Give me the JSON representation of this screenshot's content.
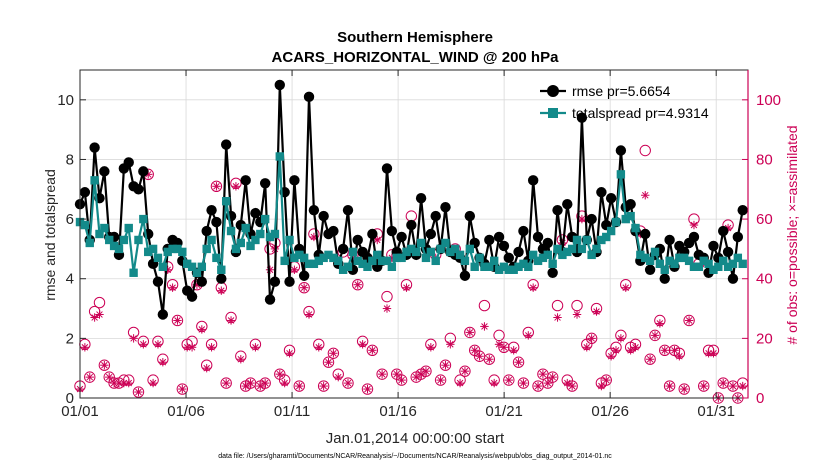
{
  "chart_data": {
    "type": "line",
    "title": "Southern Hemisphere",
    "subtitle": "ACARS_HORIZONTAL_WIND @ 200 hPa",
    "xlabel": "Jan.01,2014 00:00:00 start",
    "ylabel": "rmse and totalspread",
    "ylabel_right": "# of obs: o=possible; ×=assimilated",
    "footnote": "data file: /Users/gharamti/Documents/NCAR/Reanalysis/~/Documents/NCAR/Reanalysis/webpub/obs_diag_output_2014-01.nc",
    "xlim": [
      1,
      32.5
    ],
    "ylim": [
      0,
      11
    ],
    "ylim_right": [
      0,
      110
    ],
    "grid": true,
    "legend_position": "top-right",
    "x_ticks": [
      1,
      6,
      11,
      16,
      21,
      26,
      31
    ],
    "x_tick_labels": [
      "01/01",
      "01/06",
      "01/11",
      "01/16",
      "01/21",
      "01/26",
      "01/31"
    ],
    "y_ticks": [
      0,
      2,
      4,
      6,
      8,
      10
    ],
    "y_tick_labels": [
      "0",
      "2",
      "4",
      "6",
      "8",
      "10"
    ],
    "y_right_ticks": [
      0,
      20,
      40,
      60,
      80,
      100
    ],
    "y_right_tick_labels": [
      "0",
      "20",
      "40",
      "60",
      "80",
      "100"
    ],
    "colors": {
      "rmse": "#000000",
      "totalspread": "#138a8a",
      "obs": "#cc0055",
      "grid": "#d9d9d9"
    },
    "series": [
      {
        "name": "rmse pr=5.6654",
        "axis": "left",
        "marker": "filled-circle",
        "values": [
          6.5,
          6.9,
          5.3,
          8.4,
          6.7,
          7.6,
          5.4,
          5.4,
          4.8,
          7.7,
          7.9,
          7.1,
          7.0,
          7.6,
          5.5,
          4.5,
          3.9,
          2.8,
          5.0,
          5.3,
          5.2,
          4.6,
          3.6,
          3.4,
          4.2,
          3.9,
          5.6,
          6.3,
          5.9,
          4.0,
          8.5,
          6.1,
          4.9,
          5.8,
          7.3,
          5.5,
          6.2,
          5.9,
          7.2,
          3.3,
          3.9,
          10.5,
          6.9,
          3.9,
          7.3,
          5.0,
          4.1,
          10.1,
          6.3,
          4.8,
          6.1,
          5.5,
          5.6,
          4.5,
          5.0,
          6.3,
          4.3,
          5.3,
          4.9,
          4.7,
          5.5,
          4.4,
          4.6,
          7.7,
          5.6,
          4.9,
          5.4,
          4.8,
          5.8,
          4.8,
          6.7,
          5.0,
          5.5,
          6.1,
          5.0,
          6.4,
          4.9,
          4.8,
          4.7,
          4.1,
          6.1,
          5.2,
          4.7,
          4.5,
          5.3,
          4.4,
          5.4,
          5.1,
          4.7,
          4.4,
          4.9,
          5.6,
          4.6,
          7.3,
          5.4,
          5.0,
          5.2,
          4.2,
          6.3,
          4.9,
          6.5,
          5.4,
          4.9,
          9.4,
          5.3,
          6.0,
          4.9,
          6.9,
          5.8,
          6.7,
          5.9,
          8.3,
          6.4,
          6.5,
          5.6,
          4.6,
          5.5,
          4.3,
          4.8,
          5.0,
          4.0,
          5.3,
          4.4,
          5.1,
          4.9,
          5.2,
          5.4,
          4.8,
          4.7,
          4.2,
          5.1,
          4.7,
          5.6,
          4.9,
          4.0,
          5.4,
          6.3
        ]
      },
      {
        "name": "totalspread pr=4.9314",
        "axis": "left",
        "marker": "filled-square",
        "values": [
          5.9,
          5.8,
          5.2,
          7.3,
          5.5,
          5.7,
          5.3,
          5.1,
          5.0,
          5.3,
          5.7,
          4.2,
          5.3,
          6.0,
          4.9,
          5.0,
          4.7,
          4.4,
          4.9,
          5.0,
          5.0,
          4.9,
          4.5,
          4.4,
          4.2,
          4.4,
          5.0,
          5.3,
          4.7,
          4.3,
          6.6,
          5.6,
          5.0,
          5.2,
          5.7,
          5.1,
          5.3,
          5.5,
          6.0,
          5.4,
          5.5,
          8.1,
          4.6,
          5.3,
          4.7,
          4.8,
          4.7,
          4.5,
          4.5,
          4.6,
          4.7,
          4.8,
          4.7,
          4.6,
          4.3,
          4.4,
          4.9,
          4.6,
          4.5,
          4.4,
          4.6,
          4.8,
          4.6,
          4.6,
          4.4,
          4.7,
          4.7,
          4.9,
          5.0,
          4.9,
          5.2,
          4.7,
          4.9,
          4.6,
          5.0,
          5.2,
          4.9,
          5.0,
          4.8,
          4.6,
          5.0,
          4.4,
          4.7,
          4.4,
          4.4,
          4.6,
          4.3,
          4.4,
          4.3,
          4.3,
          4.4,
          4.5,
          4.4,
          4.8,
          4.6,
          4.7,
          4.8,
          4.5,
          5.0,
          4.8,
          4.9,
          5.0,
          5.3,
          5.0,
          5.3,
          4.8,
          5.0,
          5.3,
          5.4,
          5.6,
          5.9,
          7.5,
          6.0,
          6.1,
          5.7,
          4.8,
          4.7,
          4.6,
          4.9,
          4.5,
          4.3,
          4.6,
          4.5,
          4.7,
          4.7,
          4.6,
          4.4,
          4.4,
          4.6,
          4.5,
          4.3,
          4.4,
          4.6,
          4.4,
          4.5,
          4.7,
          4.5
        ]
      },
      {
        "name": "possible",
        "axis": "right",
        "marker": "open-circle",
        "values": [
          4,
          18,
          7,
          29,
          32,
          11,
          7,
          5,
          5,
          6,
          6,
          22,
          2,
          19,
          75,
          6,
          19,
          13,
          44,
          38,
          26,
          3,
          18,
          19,
          38,
          24,
          11,
          18,
          71,
          37,
          5,
          27,
          72,
          14,
          4,
          5,
          18,
          4,
          5,
          50,
          52,
          8,
          6,
          16,
          44,
          4,
          37,
          29,
          55,
          18,
          4,
          12,
          15,
          8,
          49,
          5,
          48,
          38,
          19,
          3,
          16,
          55,
          8,
          34,
          48,
          8,
          6,
          38,
          61,
          7,
          8,
          9,
          18,
          48,
          6,
          11,
          20,
          50,
          6,
          9,
          22,
          16,
          14,
          31,
          13,
          6,
          21,
          17,
          6,
          17,
          12,
          5,
          22,
          38,
          4,
          8,
          5,
          7,
          31,
          53,
          6,
          4,
          31,
          61,
          18,
          20,
          30,
          5,
          6,
          15,
          17,
          21,
          38,
          17,
          18,
          56,
          83,
          13,
          21,
          26,
          16,
          4,
          16,
          15,
          3,
          26,
          60,
          45,
          4,
          16,
          16,
          0,
          5,
          58,
          4,
          0,
          5
        ]
      },
      {
        "name": "assimilated",
        "axis": "right",
        "marker": "asterisk",
        "values": [
          3,
          17,
          7,
          27,
          28,
          11,
          7,
          5,
          5,
          5,
          5,
          20,
          2,
          18,
          75,
          5,
          18,
          12,
          43,
          37,
          26,
          3,
          17,
          17,
          38,
          23,
          10,
          17,
          71,
          36,
          5,
          26,
          71,
          13,
          4,
          5,
          17,
          4,
          5,
          43,
          50,
          8,
          5,
          15,
          43,
          4,
          37,
          28,
          54,
          17,
          4,
          12,
          15,
          7,
          50,
          5,
          47,
          38,
          18,
          3,
          16,
          53,
          8,
          30,
          47,
          8,
          6,
          37,
          58,
          7,
          8,
          9,
          17,
          47,
          6,
          11,
          18,
          48,
          5,
          9,
          22,
          16,
          14,
          24,
          13,
          5,
          18,
          17,
          6,
          16,
          12,
          5,
          21,
          37,
          4,
          8,
          5,
          7,
          27,
          52,
          5,
          4,
          28,
          60,
          17,
          20,
          29,
          4,
          6,
          14,
          16,
          20,
          37,
          16,
          17,
          55,
          68,
          13,
          21,
          25,
          16,
          4,
          16,
          14,
          3,
          26,
          58,
          44,
          4,
          15,
          15,
          0,
          5,
          57,
          4,
          0,
          4
        ]
      }
    ]
  }
}
